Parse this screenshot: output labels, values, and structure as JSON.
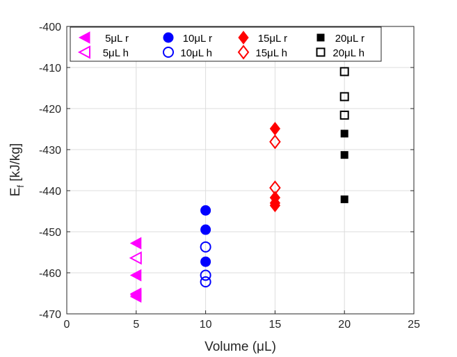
{
  "chart_data": {
    "type": "scatter",
    "title": "",
    "xlabel": "Volume (μL)",
    "ylabel": "E_f [kJ/kg]",
    "xlim": [
      0,
      25
    ],
    "ylim": [
      -470,
      -400
    ],
    "xticks": [
      0,
      5,
      10,
      15,
      20,
      25
    ],
    "yticks": [
      -400,
      -410,
      -420,
      -430,
      -440,
      -450,
      -460,
      -470
    ],
    "grid": true,
    "legend_position": "top",
    "series": [
      {
        "name": "5μL r",
        "color": "#ff00ff",
        "marker": "triangle-left",
        "filled": true,
        "x": [
          5,
          5,
          5,
          5,
          5
        ],
        "y": [
          -452.8,
          -460.6,
          -465.1,
          -465.4,
          -465.8
        ]
      },
      {
        "name": "5μL h",
        "color": "#ff00ff",
        "marker": "triangle-left",
        "filled": false,
        "x": [
          5
        ],
        "y": [
          -456.4
        ]
      },
      {
        "name": "10μL r",
        "color": "#0000ff",
        "marker": "circle",
        "filled": true,
        "x": [
          10,
          10,
          10
        ],
        "y": [
          -444.8,
          -449.5,
          -457.3
        ]
      },
      {
        "name": "10μL h",
        "color": "#0000ff",
        "marker": "circle",
        "filled": false,
        "x": [
          10,
          10,
          10
        ],
        "y": [
          -453.7,
          -460.6,
          -462.2
        ]
      },
      {
        "name": "15μL r",
        "color": "#ff0000",
        "marker": "diamond",
        "filled": true,
        "x": [
          15,
          15,
          15,
          15
        ],
        "y": [
          -424.9,
          -441.7,
          -443.0,
          -443.6
        ]
      },
      {
        "name": "15μL h",
        "color": "#ff0000",
        "marker": "diamond",
        "filled": false,
        "x": [
          15,
          15
        ],
        "y": [
          -428.1,
          -439.3
        ]
      },
      {
        "name": "20μL r",
        "color": "#000000",
        "marker": "square",
        "filled": true,
        "x": [
          20,
          20,
          20
        ],
        "y": [
          -426.1,
          -431.3,
          -442.1
        ]
      },
      {
        "name": "20μL h",
        "color": "#000000",
        "marker": "square",
        "filled": false,
        "x": [
          20,
          20,
          20
        ],
        "y": [
          -411.0,
          -417.1,
          -421.6
        ]
      }
    ]
  }
}
